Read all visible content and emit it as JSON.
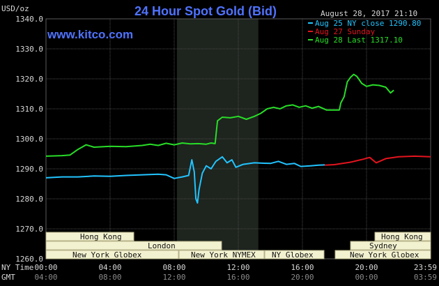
{
  "header": {
    "title": "24 Hour Spot Gold (Bid)",
    "timestamp": "August 28, 2017 21:10",
    "unit": "USD/oz",
    "watermark": "www.kitco.com"
  },
  "time_axis": {
    "ny_label": "NY Time",
    "gmt_label": "GMT",
    "ny_ticks": [
      "00:00",
      "04:00",
      "08:00",
      "12:00",
      "16:00",
      "20:00",
      "23:59"
    ],
    "gmt_ticks": [
      "04:00",
      "08:00",
      "12:00",
      "16:00",
      "20:00",
      "00:00",
      "03:59"
    ]
  },
  "sessions": {
    "row1": [
      "Hong Kong",
      "Hong Kong"
    ],
    "row2": [
      "London",
      "Sydney"
    ],
    "row3": [
      "New York Globex",
      "New York NYMEX",
      "NY Globex",
      "New York Globex"
    ]
  },
  "colors": {
    "background": "#000000",
    "title": "#4f73ff",
    "watermark": "#4f73ff",
    "series_aug25": "#22c4ff",
    "series_aug27": "#e3141e",
    "series_aug28": "#28dd28",
    "grid": "#4c4c4c",
    "session_box": "#f3f2d0",
    "session_border": "#b5b28a",
    "nymex_shade": "#1e241e"
  },
  "chart_data": {
    "type": "line",
    "title": "24 Hour Spot Gold (Bid)",
    "ylabel": "USD/oz",
    "ylim": [
      1260,
      1340
    ],
    "yticks": [
      1260,
      1270,
      1280,
      1290,
      1300,
      1310,
      1320,
      1330,
      1340
    ],
    "ytick_labels": [
      "1260.0",
      "1270.0",
      "1280.0",
      "1290.0",
      "1300.0",
      "1310.0",
      "1320.0",
      "1330.0",
      "1340.0"
    ],
    "x_unit": "hours (NY Time)",
    "xlim": [
      0,
      24
    ],
    "grid": true,
    "legend_position": "top-right",
    "shaded_session": [
      8.17,
      13.25
    ],
    "series": [
      {
        "name": "Aug 25 NY close 1290.80",
        "color": "#22c4ff",
        "points": [
          [
            0,
            1287
          ],
          [
            1,
            1287.3
          ],
          [
            2,
            1287.3
          ],
          [
            3,
            1287.6
          ],
          [
            4,
            1287.5
          ],
          [
            5,
            1287.8
          ],
          [
            6,
            1288
          ],
          [
            7,
            1288.2
          ],
          [
            7.5,
            1288
          ],
          [
            8,
            1286.8
          ],
          [
            8.5,
            1287.3
          ],
          [
            8.9,
            1287.8
          ],
          [
            9.1,
            1293
          ],
          [
            9.25,
            1289
          ],
          [
            9.35,
            1280
          ],
          [
            9.45,
            1278.6
          ],
          [
            9.55,
            1283
          ],
          [
            9.75,
            1288.5
          ],
          [
            10,
            1291
          ],
          [
            10.3,
            1290
          ],
          [
            10.6,
            1292.5
          ],
          [
            11,
            1294
          ],
          [
            11.3,
            1292
          ],
          [
            11.6,
            1293
          ],
          [
            11.85,
            1290.5
          ],
          [
            12.3,
            1291.5
          ],
          [
            13,
            1292
          ],
          [
            14,
            1291.8
          ],
          [
            14.5,
            1292.5
          ],
          [
            15,
            1291.5
          ],
          [
            15.5,
            1291.8
          ],
          [
            15.9,
            1290.8
          ],
          [
            16.5,
            1291
          ],
          [
            17,
            1291.2
          ],
          [
            17.4,
            1291.3
          ]
        ]
      },
      {
        "name": "Aug 27 Sunday",
        "color": "#e3141e",
        "points": [
          [
            17.4,
            1291.2
          ],
          [
            18,
            1291.4
          ],
          [
            19,
            1292.2
          ],
          [
            19.8,
            1293.2
          ],
          [
            20.2,
            1293.8
          ],
          [
            20.6,
            1292
          ],
          [
            21.2,
            1293.4
          ],
          [
            22,
            1294
          ],
          [
            23,
            1294.2
          ],
          [
            24,
            1294
          ]
        ]
      },
      {
        "name": "Aug 28 Last 1317.10",
        "color": "#28dd28",
        "points": [
          [
            0,
            1294.2
          ],
          [
            1,
            1294.4
          ],
          [
            1.5,
            1294.6
          ],
          [
            2,
            1296.5
          ],
          [
            2.5,
            1298
          ],
          [
            3,
            1297.2
          ],
          [
            4,
            1297.5
          ],
          [
            5,
            1297.4
          ],
          [
            6,
            1297.8
          ],
          [
            6.5,
            1298.2
          ],
          [
            7,
            1297.8
          ],
          [
            7.5,
            1298.5
          ],
          [
            8,
            1298
          ],
          [
            8.5,
            1298.6
          ],
          [
            9,
            1298.3
          ],
          [
            9.5,
            1298.4
          ],
          [
            10,
            1298.2
          ],
          [
            10.3,
            1298.6
          ],
          [
            10.55,
            1298.4
          ],
          [
            10.7,
            1306
          ],
          [
            11,
            1307.2
          ],
          [
            11.5,
            1307
          ],
          [
            12,
            1307.5
          ],
          [
            12.5,
            1306.5
          ],
          [
            13,
            1307.5
          ],
          [
            13.4,
            1308.5
          ],
          [
            13.8,
            1310
          ],
          [
            14.2,
            1310.5
          ],
          [
            14.6,
            1310
          ],
          [
            15,
            1311
          ],
          [
            15.4,
            1311.3
          ],
          [
            15.8,
            1310.5
          ],
          [
            16.2,
            1311
          ],
          [
            16.6,
            1310.2
          ],
          [
            17,
            1310.8
          ],
          [
            17.5,
            1309.6
          ],
          [
            18,
            1309.6
          ],
          [
            18.3,
            1309.6
          ],
          [
            18.4,
            1312
          ],
          [
            18.6,
            1314
          ],
          [
            18.8,
            1319
          ],
          [
            19,
            1320.5
          ],
          [
            19.2,
            1321.5
          ],
          [
            19.4,
            1320.8
          ],
          [
            19.7,
            1318.5
          ],
          [
            20,
            1317.5
          ],
          [
            20.4,
            1318
          ],
          [
            20.8,
            1317.8
          ],
          [
            21.2,
            1317.2
          ],
          [
            21.5,
            1315.3
          ],
          [
            21.7,
            1316.2
          ]
        ]
      }
    ]
  }
}
